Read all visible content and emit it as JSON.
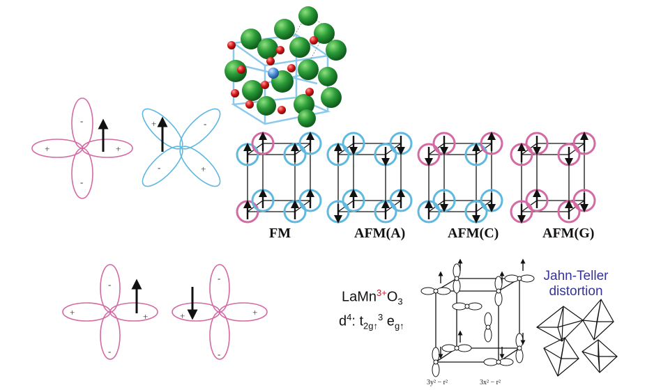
{
  "colors": {
    "pink": "#d36aa3",
    "blue": "#5fb8df",
    "green": "#1e8f32",
    "oxygen": "#d21a1a",
    "manganese": "#4a8fd8",
    "jt_text": "#34349a",
    "highlight": "#c0182a"
  },
  "orbitals": {
    "signs": {
      "plus": "+",
      "minus": "-"
    }
  },
  "magnetic_orders": [
    "FM",
    "AFM(A)",
    "AFM(C)",
    "AFM(G)"
  ],
  "formula": {
    "prefix": "LaMn",
    "charge": "3+",
    "suffix": "O",
    "oxygen_sub": "3",
    "d_label": "d",
    "d_sup": "4",
    "colon": ": ",
    "t": "t",
    "t_sub": "2g↑",
    "t_sup": "3",
    "e": " e",
    "e_sub": "g↑"
  },
  "jahn_teller": {
    "line1": "Jahn-Teller",
    "line2": "distortion"
  },
  "orbital_cube_labels": {
    "left": "3y² − r²",
    "right": "3x² − r²"
  }
}
